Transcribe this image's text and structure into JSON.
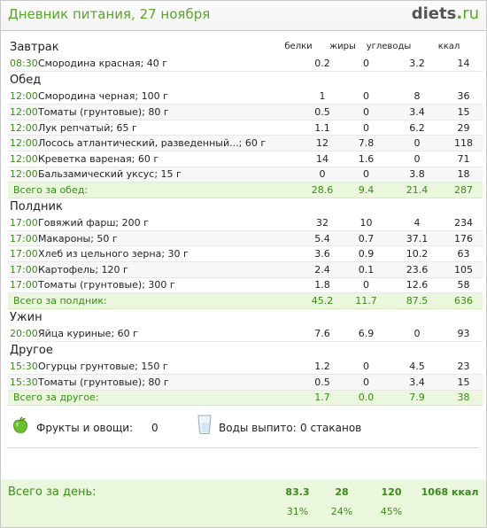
{
  "header": {
    "title": "Дневник питания, 27 ноября",
    "logo_main": "diets",
    "logo_dot": ".",
    "logo_tld": "ru"
  },
  "columns": {
    "protein": "белки",
    "fat": "жиры",
    "carbs": "углеводы",
    "kcal": "ккал"
  },
  "meals": [
    {
      "title": "Завтрак",
      "items": [
        {
          "time": "08:30",
          "name": "Смородина красная; 40 г",
          "protein": "0.2",
          "fat": "0",
          "carbs": "3.2",
          "kcal": "14"
        }
      ]
    },
    {
      "title": "Обед",
      "items": [
        {
          "time": "12:00",
          "name": "Смородина черная; 100 г",
          "protein": "1",
          "fat": "0",
          "carbs": "8",
          "kcal": "36"
        },
        {
          "time": "12:00",
          "name": "Томаты (грунтовые); 80 г",
          "protein": "0.5",
          "fat": "0",
          "carbs": "3.4",
          "kcal": "15"
        },
        {
          "time": "12:00",
          "name": "Лук репчатый; 65 г",
          "protein": "1.1",
          "fat": "0",
          "carbs": "6.2",
          "kcal": "29"
        },
        {
          "time": "12:00",
          "name": "Лосось атлантический, разведенный...; 60 г",
          "protein": "12",
          "fat": "7.8",
          "carbs": "0",
          "kcal": "118"
        },
        {
          "time": "12:00",
          "name": "Креветка вареная; 60 г",
          "protein": "14",
          "fat": "1.6",
          "carbs": "0",
          "kcal": "71"
        },
        {
          "time": "12:00",
          "name": "Бальзамический уксус; 15 г",
          "protein": "0",
          "fat": "0",
          "carbs": "3.8",
          "kcal": "18"
        }
      ],
      "total": {
        "label": "Всего за обед:",
        "protein": "28.6",
        "fat": "9.4",
        "carbs": "21.4",
        "kcal": "287"
      }
    },
    {
      "title": "Полдник",
      "items": [
        {
          "time": "17:00",
          "name": "Говяжий фарш; 200 г",
          "protein": "32",
          "fat": "10",
          "carbs": "4",
          "kcal": "234"
        },
        {
          "time": "17:00",
          "name": "Макароны; 50 г",
          "protein": "5.4",
          "fat": "0.7",
          "carbs": "37.1",
          "kcal": "176"
        },
        {
          "time": "17:00",
          "name": "Хлеб из цельного зерна; 30 г",
          "protein": "3.6",
          "fat": "0.9",
          "carbs": "10.2",
          "kcal": "63"
        },
        {
          "time": "17:00",
          "name": "Картофель; 120 г",
          "protein": "2.4",
          "fat": "0.1",
          "carbs": "23.6",
          "kcal": "105"
        },
        {
          "time": "17:00",
          "name": "Томаты (грунтовые); 300 г",
          "protein": "1.8",
          "fat": "0",
          "carbs": "12.6",
          "kcal": "58"
        }
      ],
      "total": {
        "label": "Всего за полдник:",
        "protein": "45.2",
        "fat": "11.7",
        "carbs": "87.5",
        "kcal": "636"
      }
    },
    {
      "title": "Ужин",
      "items": [
        {
          "time": "20:00",
          "name": "Яйца куриные; 60 г",
          "protein": "7.6",
          "fat": "6.9",
          "carbs": "0",
          "kcal": "93"
        }
      ]
    },
    {
      "title": "Другое",
      "items": [
        {
          "time": "15:30",
          "name": "Огурцы грунтовые; 150 г",
          "protein": "1.2",
          "fat": "0",
          "carbs": "4.5",
          "kcal": "23"
        },
        {
          "time": "15:30",
          "name": "Томаты (грунтовые); 80 г",
          "protein": "0.5",
          "fat": "0",
          "carbs": "3.4",
          "kcal": "15"
        }
      ],
      "total": {
        "label": "Всего за другое:",
        "protein": "1.7",
        "fat": "0.0",
        "carbs": "7.9",
        "kcal": "38"
      }
    }
  ],
  "extras": {
    "fruit_label": "Фрукты и овощи:",
    "fruit_value": "0",
    "water_label": "Воды выпито:",
    "water_value": "0 стаканов",
    "fruit_icon": "apple-icon",
    "water_icon": "water-glass-icon"
  },
  "day_total": {
    "label": "Всего за день:",
    "protein": "83.3",
    "fat": "28",
    "carbs": "120",
    "kcal": "1068 ккал",
    "protein_pct": "31%",
    "fat_pct": "24%",
    "carbs_pct": "45%"
  },
  "colors": {
    "accent": "#5aa42b",
    "total_bg": "#eaf7dc",
    "total_text": "#3a8a1b"
  }
}
